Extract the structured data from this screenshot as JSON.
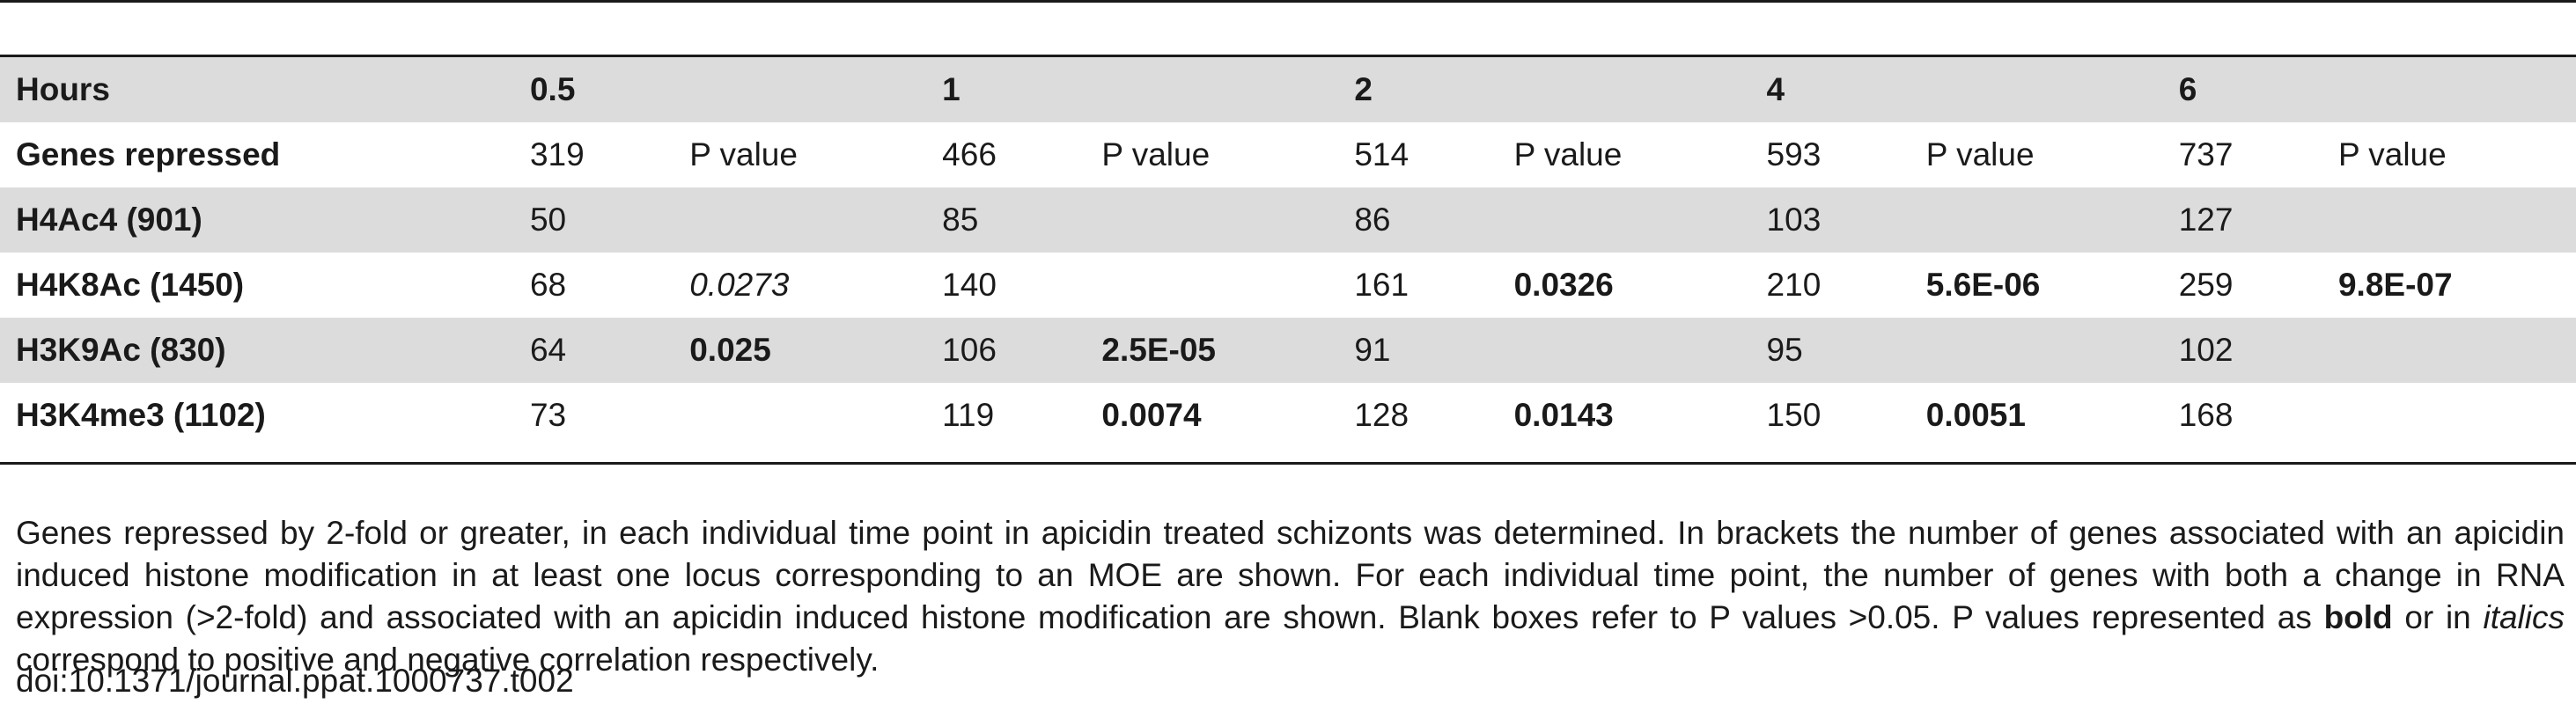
{
  "table": {
    "header": {
      "label": "Hours",
      "columns": [
        "0.5",
        "",
        "1",
        "",
        "2",
        "",
        "4",
        "",
        "6",
        ""
      ]
    },
    "rows": [
      {
        "label": "Genes repressed",
        "cells": [
          {
            "text": "319",
            "style": ""
          },
          {
            "text": "P value",
            "style": ""
          },
          {
            "text": "466",
            "style": ""
          },
          {
            "text": "P value",
            "style": ""
          },
          {
            "text": "514",
            "style": ""
          },
          {
            "text": "P value",
            "style": ""
          },
          {
            "text": "593",
            "style": ""
          },
          {
            "text": "P value",
            "style": ""
          },
          {
            "text": "737",
            "style": ""
          },
          {
            "text": "P value",
            "style": ""
          }
        ]
      },
      {
        "label": "H4Ac4 (901)",
        "cells": [
          {
            "text": "50",
            "style": ""
          },
          {
            "text": "",
            "style": ""
          },
          {
            "text": "85",
            "style": ""
          },
          {
            "text": "",
            "style": ""
          },
          {
            "text": "86",
            "style": ""
          },
          {
            "text": "",
            "style": ""
          },
          {
            "text": "103",
            "style": ""
          },
          {
            "text": "",
            "style": ""
          },
          {
            "text": "127",
            "style": ""
          },
          {
            "text": "",
            "style": ""
          }
        ]
      },
      {
        "label": "H4K8Ac (1450)",
        "cells": [
          {
            "text": "68",
            "style": ""
          },
          {
            "text": "0.0273",
            "style": "italic"
          },
          {
            "text": "140",
            "style": ""
          },
          {
            "text": "",
            "style": ""
          },
          {
            "text": "161",
            "style": ""
          },
          {
            "text": "0.0326",
            "style": "bold"
          },
          {
            "text": "210",
            "style": ""
          },
          {
            "text": "5.6E-06",
            "style": "bold"
          },
          {
            "text": "259",
            "style": ""
          },
          {
            "text": "9.8E-07",
            "style": "bold"
          }
        ]
      },
      {
        "label": "H3K9Ac (830)",
        "cells": [
          {
            "text": "64",
            "style": ""
          },
          {
            "text": "0.025",
            "style": "bold"
          },
          {
            "text": "106",
            "style": ""
          },
          {
            "text": "2.5E-05",
            "style": "bold"
          },
          {
            "text": "91",
            "style": ""
          },
          {
            "text": "",
            "style": ""
          },
          {
            "text": "95",
            "style": ""
          },
          {
            "text": "",
            "style": ""
          },
          {
            "text": "102",
            "style": ""
          },
          {
            "text": "",
            "style": ""
          }
        ]
      },
      {
        "label": "H3K4me3 (1102)",
        "cells": [
          {
            "text": "73",
            "style": ""
          },
          {
            "text": "",
            "style": ""
          },
          {
            "text": "119",
            "style": ""
          },
          {
            "text": "0.0074",
            "style": "bold"
          },
          {
            "text": "128",
            "style": ""
          },
          {
            "text": "0.0143",
            "style": "bold"
          },
          {
            "text": "150",
            "style": ""
          },
          {
            "text": "0.0051",
            "style": "bold"
          },
          {
            "text": "168",
            "style": ""
          },
          {
            "text": "",
            "style": ""
          }
        ]
      }
    ]
  },
  "caption": {
    "part1": "Genes repressed by 2-fold or greater, in each individual time point in apicidin treated schizonts was determined. In brackets the number of genes associated with an apicidin induced histone modification in at least one locus corresponding to an MOE are shown. For each individual time point, the number of genes with both a change in RNA expression (>2-fold) and associated with an apicidin induced histone modification are shown. Blank boxes refer to P values >0.05. P values represented as ",
    "bold_word": "bold",
    "part2": " or in ",
    "italic_word": "italics",
    "part3": " correspond to positive and negative correlation respectively."
  },
  "doi": "doi:10.1371/journal.ppat.1000737.t002"
}
